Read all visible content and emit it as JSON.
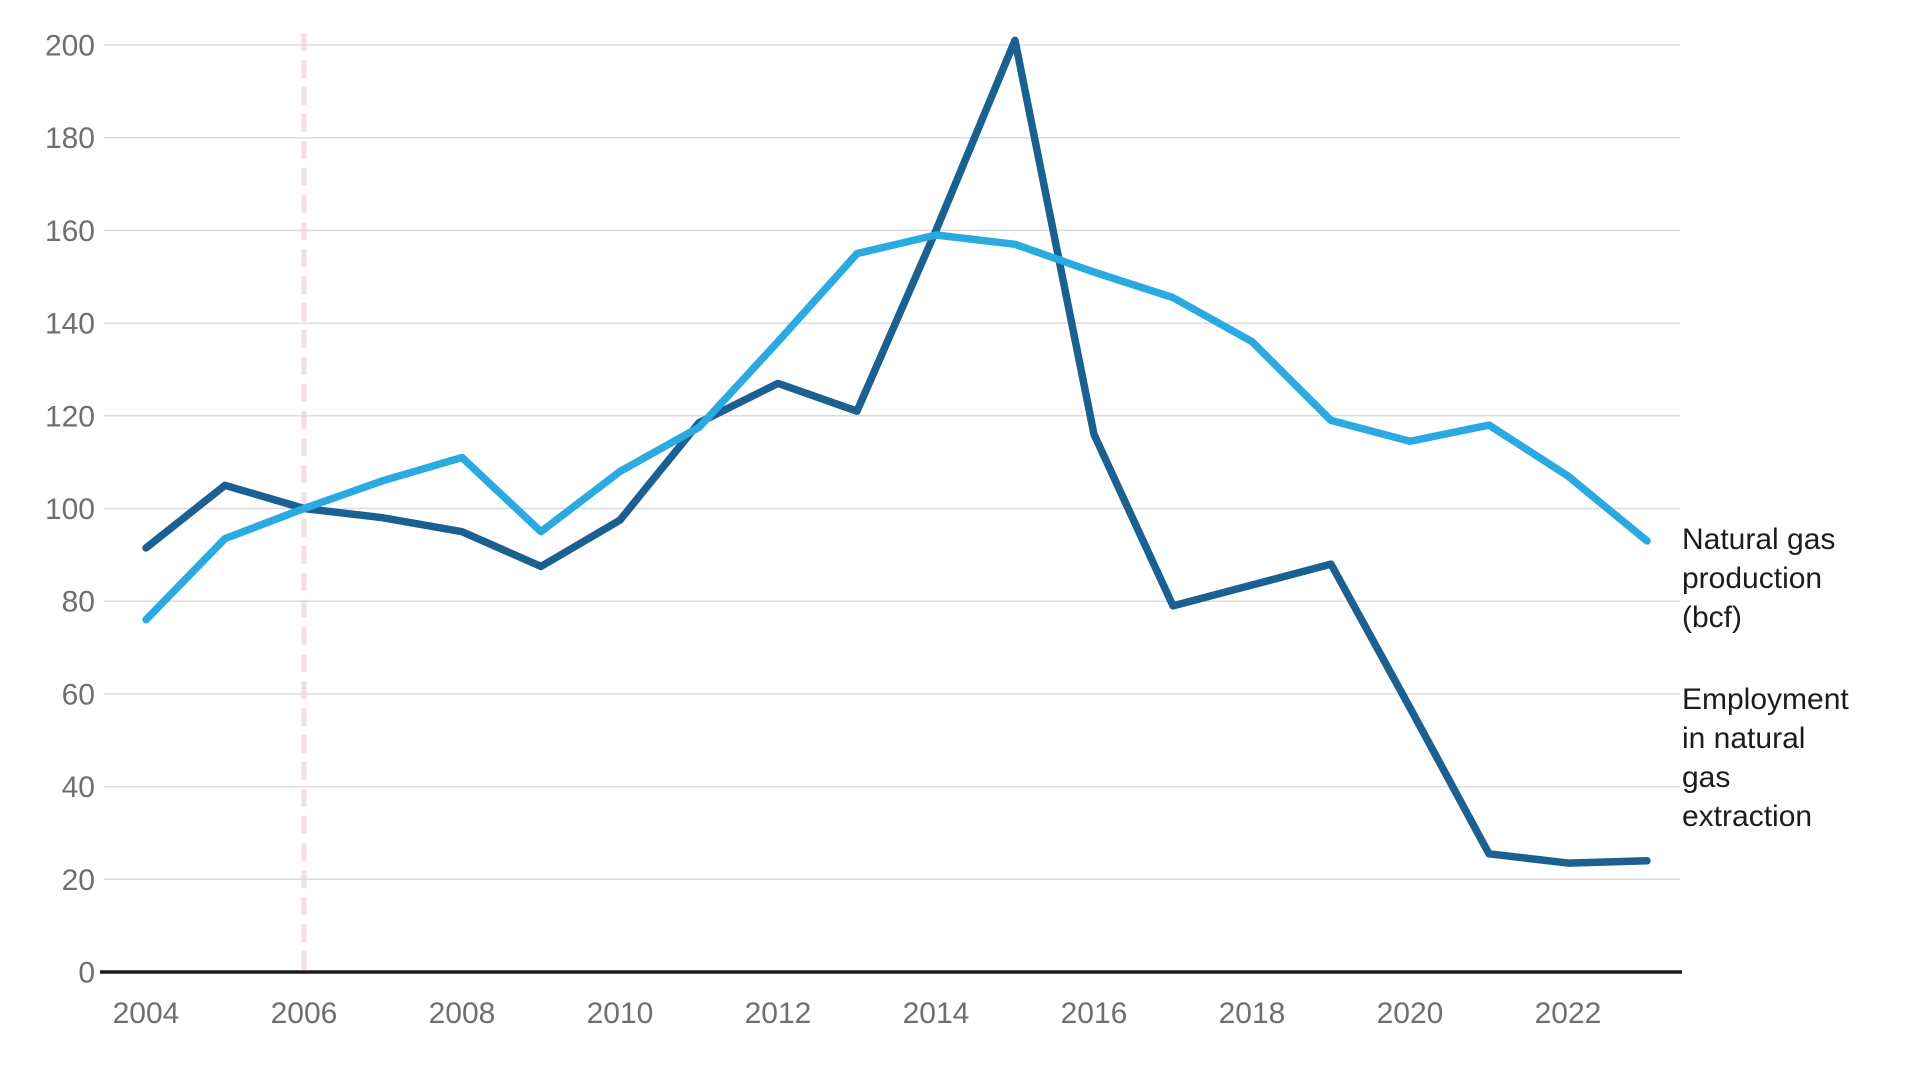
{
  "chart_data": {
    "type": "line",
    "title": "",
    "xlabel": "",
    "ylabel": "",
    "x": [
      2004,
      2005,
      2006,
      2007,
      2008,
      2009,
      2010,
      2011,
      2012,
      2013,
      2014,
      2015,
      2016,
      2017,
      2018,
      2019,
      2020,
      2021,
      2022,
      2023
    ],
    "series": [
      {
        "key": "employment",
        "name": "Employment in natural gas extraction",
        "color": "#1a6191",
        "values": [
          91.5,
          105,
          100,
          98,
          95,
          87.5,
          97.5,
          118.5,
          127,
          121,
          160,
          201,
          116,
          79,
          83.5,
          88,
          57,
          25.5,
          23.5,
          24
        ]
      },
      {
        "key": "production",
        "name": "Natural gas production (bcf)",
        "color": "#2aaae1",
        "values": [
          76,
          93.5,
          100,
          106,
          111,
          95,
          108,
          117.5,
          136,
          155,
          159,
          157,
          151,
          145.5,
          136,
          119,
          114.5,
          118,
          107,
          93
        ]
      }
    ],
    "ylim": [
      0,
      200
    ],
    "yticks": [
      0,
      20,
      40,
      60,
      80,
      100,
      120,
      140,
      160,
      180,
      200
    ],
    "xticks": [
      2004,
      2006,
      2008,
      2010,
      2012,
      2014,
      2016,
      2018,
      2020,
      2022
    ],
    "grid": "horizontal",
    "legend_position": "right-annotations",
    "reference_line": {
      "x": 2006,
      "style": "dashed",
      "color": "#eecfcf"
    },
    "labels": {
      "production": "Natural gas\nproduction\n(bcf)",
      "employment": "Employment\nin natural\ngas\nextraction"
    },
    "colors": {
      "grid": "#dcdcdc",
      "axis": "#1c1c1c",
      "tick_text": "#6f6f6f",
      "annotation_text": "#1c1c1c"
    }
  }
}
